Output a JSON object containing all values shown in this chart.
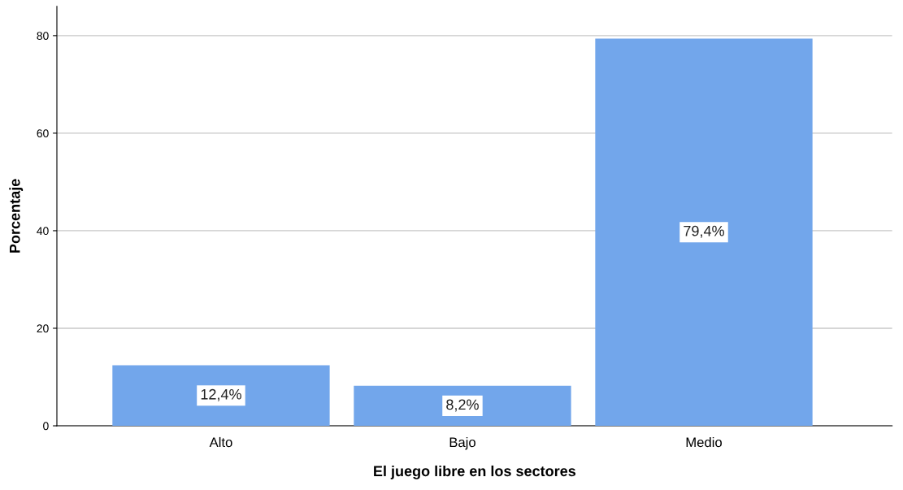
{
  "chart_data": {
    "type": "bar",
    "xlabel": "El juego libre en los sectores",
    "ylabel": "Porcentaje",
    "categories": [
      "Alto",
      "Bajo",
      "Medio"
    ],
    "values": [
      12.4,
      8.2,
      79.4
    ],
    "value_labels": [
      "12,4%",
      "8,2%",
      "79,4%"
    ],
    "color": "#72a6eb",
    "ylim": [
      0,
      86
    ],
    "yticks": [
      0,
      20,
      40,
      60,
      80
    ],
    "grid": "y"
  }
}
